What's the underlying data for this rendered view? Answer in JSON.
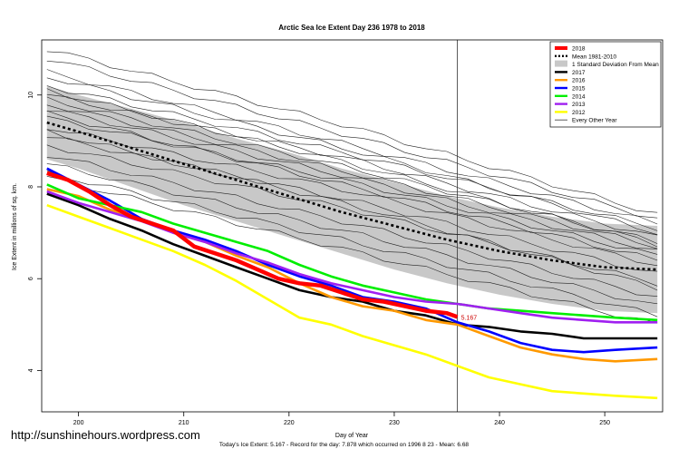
{
  "page": {
    "url": "http://sunshinehours.wordpress.com",
    "footer": "Today's Ice Extent: 5.167  - Record for the day: 7.878 which occurred on 1996 8 23  - Mean: 6.68"
  },
  "chart_data": {
    "type": "line",
    "title": "Arctic Sea Ice Extent Day 236 1978 to 2018",
    "xlabel": "Day of Year",
    "ylabel": "Ice Extent in millions of sq. km.",
    "xlim": [
      196.5,
      255.5
    ],
    "ylim": [
      3.1,
      11.2
    ],
    "xticks": [
      200,
      210,
      220,
      230,
      240,
      250
    ],
    "yticks": [
      4,
      6,
      8,
      10
    ],
    "grid": false,
    "legend_position": "top-right",
    "vline_x": 236,
    "current_label": "5.167",
    "legend": [
      {
        "label": "2018",
        "color": "#ff0000",
        "style": "thick"
      },
      {
        "label": "Mean 1981-2010",
        "color": "#000000",
        "style": "dotted"
      },
      {
        "label": "1 Standard Deviation From Mean",
        "color": "#c8c8c8",
        "style": "box"
      },
      {
        "label": "2017",
        "color": "#000000",
        "style": "solid"
      },
      {
        "label": "2016",
        "color": "#ff9900",
        "style": "solid"
      },
      {
        "label": "2015",
        "color": "#0000ff",
        "style": "solid"
      },
      {
        "label": "2014",
        "color": "#00ee00",
        "style": "solid"
      },
      {
        "label": "2013",
        "color": "#a020f0",
        "style": "solid"
      },
      {
        "label": "2012",
        "color": "#ffff00",
        "style": "solid"
      },
      {
        "label": "Every Other Year",
        "color": "#333333",
        "style": "thin"
      }
    ],
    "mean_series": {
      "name": "Mean 1981-2010",
      "x": [
        197,
        200,
        205,
        210,
        215,
        220,
        225,
        230,
        235,
        240,
        245,
        250,
        255
      ],
      "y": [
        9.4,
        9.2,
        8.85,
        8.5,
        8.15,
        7.8,
        7.45,
        7.15,
        6.85,
        6.6,
        6.4,
        6.25,
        6.2
      ]
    },
    "std_band": {
      "x": [
        197,
        200,
        205,
        210,
        215,
        220,
        225,
        230,
        235,
        240,
        245,
        250,
        255
      ],
      "upper": [
        10.2,
        10.0,
        9.7,
        9.4,
        9.05,
        8.75,
        8.4,
        8.1,
        7.8,
        7.55,
        7.35,
        7.2,
        7.15
      ],
      "lower": [
        8.6,
        8.4,
        8.0,
        7.6,
        7.25,
        6.9,
        6.55,
        6.2,
        5.9,
        5.65,
        5.45,
        5.3,
        5.25
      ]
    },
    "series": [
      {
        "name": "2017",
        "color": "#000000",
        "x": [
          197,
          200,
          203,
          206,
          209,
          212,
          215,
          218,
          221,
          224,
          227,
          230,
          233,
          236,
          239,
          242,
          245,
          248,
          251,
          255
        ],
        "y": [
          7.85,
          7.6,
          7.3,
          7.05,
          6.75,
          6.5,
          6.25,
          6.0,
          5.75,
          5.6,
          5.5,
          5.3,
          5.2,
          5.0,
          4.95,
          4.85,
          4.8,
          4.7,
          4.7,
          4.7
        ]
      },
      {
        "name": "2016",
        "color": "#ff9900",
        "x": [
          197,
          200,
          203,
          206,
          209,
          212,
          215,
          218,
          221,
          224,
          227,
          230,
          233,
          236,
          239,
          242,
          245,
          248,
          251,
          255
        ],
        "y": [
          7.95,
          7.8,
          7.5,
          7.3,
          7.0,
          6.8,
          6.5,
          6.25,
          5.9,
          5.6,
          5.4,
          5.3,
          5.1,
          5.0,
          4.75,
          4.5,
          4.35,
          4.25,
          4.2,
          4.25
        ]
      },
      {
        "name": "2015",
        "color": "#0000ff",
        "x": [
          197,
          200,
          203,
          206,
          209,
          212,
          215,
          218,
          221,
          224,
          227,
          230,
          233,
          236,
          239,
          242,
          245,
          248,
          251,
          255
        ],
        "y": [
          8.4,
          8.05,
          7.7,
          7.3,
          7.05,
          6.85,
          6.6,
          6.3,
          6.05,
          5.85,
          5.6,
          5.5,
          5.35,
          5.05,
          4.85,
          4.6,
          4.45,
          4.4,
          4.45,
          4.5
        ]
      },
      {
        "name": "2014",
        "color": "#00ee00",
        "x": [
          197,
          200,
          203,
          206,
          209,
          212,
          215,
          218,
          221,
          224,
          227,
          230,
          233,
          236,
          239,
          242,
          245,
          248,
          251,
          255
        ],
        "y": [
          8.05,
          7.75,
          7.6,
          7.45,
          7.2,
          7.0,
          6.8,
          6.6,
          6.3,
          6.05,
          5.85,
          5.7,
          5.55,
          5.45,
          5.35,
          5.3,
          5.25,
          5.2,
          5.15,
          5.1
        ]
      },
      {
        "name": "2013",
        "color": "#a020f0",
        "x": [
          197,
          200,
          203,
          206,
          209,
          212,
          215,
          218,
          221,
          224,
          227,
          230,
          233,
          236,
          239,
          242,
          245,
          248,
          251,
          255
        ],
        "y": [
          7.9,
          7.65,
          7.45,
          7.25,
          7.0,
          6.8,
          6.55,
          6.35,
          6.1,
          5.9,
          5.75,
          5.6,
          5.5,
          5.45,
          5.35,
          5.25,
          5.15,
          5.1,
          5.05,
          5.05
        ]
      },
      {
        "name": "2012",
        "color": "#ffff00",
        "x": [
          197,
          200,
          203,
          206,
          209,
          212,
          215,
          218,
          221,
          224,
          227,
          230,
          233,
          236,
          239,
          242,
          245,
          248,
          251,
          255
        ],
        "y": [
          7.6,
          7.35,
          7.1,
          6.85,
          6.6,
          6.3,
          5.95,
          5.55,
          5.15,
          5.0,
          4.75,
          4.55,
          4.35,
          4.1,
          3.85,
          3.7,
          3.55,
          3.5,
          3.45,
          3.4
        ]
      },
      {
        "name": "2018",
        "color": "#ff0000",
        "x": [
          197,
          199,
          201,
          203,
          205,
          207,
          209,
          211,
          213,
          215,
          217,
          219,
          221,
          223,
          225,
          227,
          229,
          231,
          233,
          235,
          236
        ],
        "y": [
          8.3,
          8.15,
          7.9,
          7.6,
          7.35,
          7.2,
          7.05,
          6.7,
          6.55,
          6.4,
          6.2,
          6.0,
          5.9,
          5.85,
          5.7,
          5.55,
          5.5,
          5.4,
          5.3,
          5.25,
          5.167
        ]
      }
    ],
    "other_years": [
      [
        10.5,
        8.9,
        7.2
      ],
      [
        10.2,
        8.7,
        7.1
      ],
      [
        10.8,
        9.1,
        7.3
      ],
      [
        10.0,
        8.6,
        6.9
      ],
      [
        9.9,
        8.4,
        6.8
      ],
      [
        10.4,
        8.8,
        7.0
      ],
      [
        9.7,
        8.2,
        6.6
      ],
      [
        9.5,
        8.1,
        6.5
      ],
      [
        10.1,
        8.5,
        6.75
      ],
      [
        9.3,
        7.9,
        6.3
      ],
      [
        9.1,
        7.7,
        6.1
      ],
      [
        9.6,
        8.0,
        6.4
      ],
      [
        8.9,
        7.5,
        5.9
      ],
      [
        8.7,
        7.2,
        5.6
      ],
      [
        8.5,
        7.0,
        5.4
      ],
      [
        8.3,
        6.8,
        5.2
      ],
      [
        9.8,
        8.3,
        6.7
      ],
      [
        11.0,
        9.3,
        7.4
      ],
      [
        8.2,
        6.6,
        5.0
      ],
      [
        9.2,
        7.6,
        5.8
      ]
    ]
  }
}
